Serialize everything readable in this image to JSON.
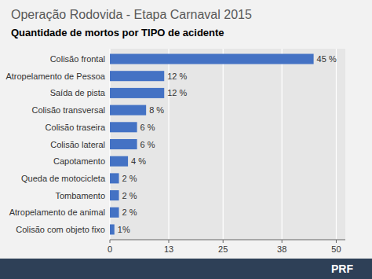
{
  "chart_data": {
    "type": "bar",
    "orientation": "horizontal",
    "title": "Operação Rodovida - Etapa Carnaval 2015",
    "subtitle": "Quantidade de mortos por TIPO de acidente",
    "categories": [
      "Colisão com objeto fixo",
      "Atropelamento de animal",
      "Tombamento",
      "Queda de motocicleta",
      "Capotamento",
      "Colisão lateral",
      "Colisão traseira",
      "Colisão transversal",
      "Saída de pista",
      "Atropelamento de Pessoa",
      "Colisão frontal"
    ],
    "values": [
      1,
      2,
      2,
      2,
      4,
      6,
      6,
      8,
      12,
      12,
      45
    ],
    "value_labels": [
      "1%",
      "2 %",
      "2 %",
      "2 %",
      "4 %",
      "6 %",
      "6 %",
      "8 %",
      "12 %",
      "12 %",
      "45 %"
    ],
    "data_labels": true,
    "color": "#4472c4",
    "xlim": [
      0,
      52
    ],
    "xticks": [
      0,
      13,
      25,
      38,
      50
    ],
    "grid": true,
    "annotations": [
      "PRF"
    ]
  }
}
